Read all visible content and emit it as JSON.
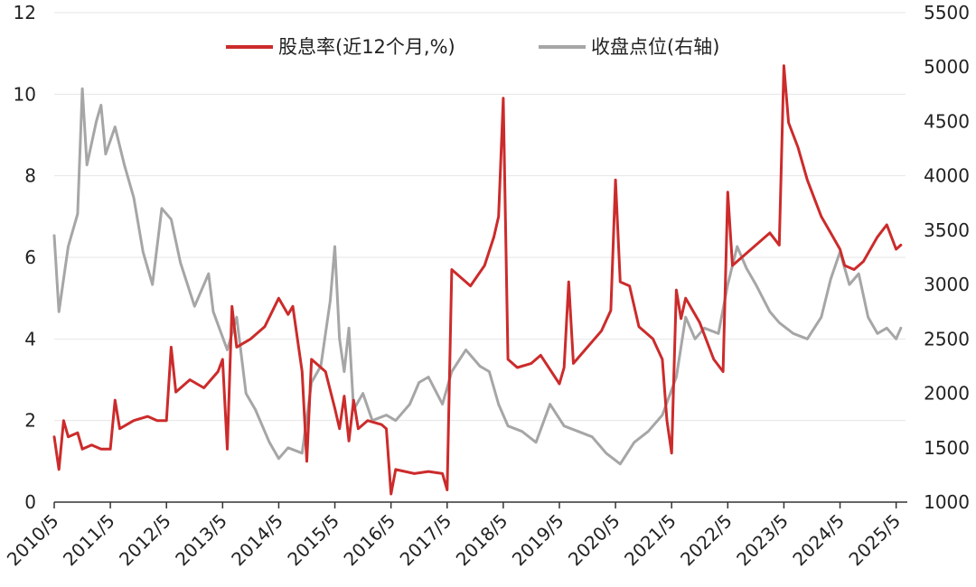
{
  "chart_data": {
    "type": "line",
    "title": "",
    "legend": {
      "placement": "top-center",
      "entries": [
        "股息率(近12个月,%)",
        "收盘点位(右轴)"
      ]
    },
    "colors": {
      "dividend": "#cc2b2b",
      "close": "#a6a6a6",
      "grid": "#e6e6e6",
      "axis": "#333333"
    },
    "x_axis": {
      "type": "date",
      "range": [
        "2010-05",
        "2025-07"
      ],
      "tick_labels": [
        "2010/5",
        "2011/5",
        "2012/5",
        "2013/5",
        "2014/5",
        "2015/5",
        "2016/5",
        "2017/5",
        "2018/5",
        "2019/5",
        "2020/5",
        "2021/5",
        "2022/5",
        "2023/5",
        "2024/5",
        "2025/5"
      ]
    },
    "y_axis_left": {
      "label": "",
      "ylim": [
        0,
        12
      ],
      "ticks": [
        0,
        2,
        4,
        6,
        8,
        10,
        12
      ]
    },
    "y_axis_right": {
      "label": "",
      "ylim": [
        1000,
        5500
      ],
      "ticks": [
        1000,
        1500,
        2000,
        2500,
        3000,
        3500,
        4000,
        4500,
        5000,
        5500
      ]
    },
    "grid": "horizontal",
    "series": [
      {
        "name": "股息率(近12个月,%)",
        "axis": "left",
        "points": [
          [
            "2010-05",
            1.6
          ],
          [
            "2010-06",
            0.8
          ],
          [
            "2010-07",
            2.0
          ],
          [
            "2010-08",
            1.6
          ],
          [
            "2010-10",
            1.7
          ],
          [
            "2010-11",
            1.3
          ],
          [
            "2011-01",
            1.4
          ],
          [
            "2011-03",
            1.3
          ],
          [
            "2011-05",
            1.3
          ],
          [
            "2011-06",
            2.5
          ],
          [
            "2011-07",
            1.8
          ],
          [
            "2011-10",
            2.0
          ],
          [
            "2012-01",
            2.1
          ],
          [
            "2012-03",
            2.0
          ],
          [
            "2012-05",
            2.0
          ],
          [
            "2012-06",
            3.8
          ],
          [
            "2012-07",
            2.7
          ],
          [
            "2012-10",
            3.0
          ],
          [
            "2013-01",
            2.8
          ],
          [
            "2013-04",
            3.2
          ],
          [
            "2013-05",
            3.5
          ],
          [
            "2013-06",
            1.3
          ],
          [
            "2013-07",
            4.8
          ],
          [
            "2013-08",
            3.8
          ],
          [
            "2013-11",
            4.0
          ],
          [
            "2014-02",
            4.3
          ],
          [
            "2014-05",
            5.0
          ],
          [
            "2014-07",
            4.6
          ],
          [
            "2014-08",
            4.8
          ],
          [
            "2014-10",
            3.2
          ],
          [
            "2014-11",
            1.0
          ],
          [
            "2014-12",
            3.5
          ],
          [
            "2015-03",
            3.2
          ],
          [
            "2015-05",
            2.3
          ],
          [
            "2015-06",
            1.8
          ],
          [
            "2015-07",
            2.6
          ],
          [
            "2015-08",
            1.5
          ],
          [
            "2015-09",
            2.5
          ],
          [
            "2015-10",
            1.8
          ],
          [
            "2015-12",
            2.0
          ],
          [
            "2016-03",
            1.9
          ],
          [
            "2016-04",
            1.8
          ],
          [
            "2016-05",
            0.2
          ],
          [
            "2016-06",
            0.8
          ],
          [
            "2016-10",
            0.7
          ],
          [
            "2017-01",
            0.75
          ],
          [
            "2017-04",
            0.7
          ],
          [
            "2017-05",
            0.3
          ],
          [
            "2017-06",
            5.7
          ],
          [
            "2017-08",
            5.5
          ],
          [
            "2017-10",
            5.3
          ],
          [
            "2018-01",
            5.8
          ],
          [
            "2018-03",
            6.5
          ],
          [
            "2018-04",
            7.0
          ],
          [
            "2018-05",
            9.9
          ],
          [
            "2018-06",
            3.5
          ],
          [
            "2018-08",
            3.3
          ],
          [
            "2018-11",
            3.4
          ],
          [
            "2019-01",
            3.6
          ],
          [
            "2019-05",
            2.9
          ],
          [
            "2019-06",
            3.3
          ],
          [
            "2019-07",
            5.4
          ],
          [
            "2019-08",
            3.4
          ],
          [
            "2019-11",
            3.8
          ],
          [
            "2020-02",
            4.2
          ],
          [
            "2020-04",
            4.7
          ],
          [
            "2020-05",
            7.9
          ],
          [
            "2020-06",
            5.4
          ],
          [
            "2020-08",
            5.3
          ],
          [
            "2020-10",
            4.3
          ],
          [
            "2021-01",
            4.0
          ],
          [
            "2021-03",
            3.5
          ],
          [
            "2021-04",
            2.0
          ],
          [
            "2021-05",
            1.2
          ],
          [
            "2021-06",
            5.2
          ],
          [
            "2021-07",
            4.5
          ],
          [
            "2021-08",
            5.0
          ],
          [
            "2021-11",
            4.4
          ],
          [
            "2022-02",
            3.5
          ],
          [
            "2022-04",
            3.2
          ],
          [
            "2022-05",
            7.6
          ],
          [
            "2022-06",
            5.8
          ],
          [
            "2022-08",
            6.0
          ],
          [
            "2022-11",
            6.3
          ],
          [
            "2023-02",
            6.6
          ],
          [
            "2023-04",
            6.3
          ],
          [
            "2023-05",
            10.7
          ],
          [
            "2023-06",
            9.3
          ],
          [
            "2023-08",
            8.7
          ],
          [
            "2023-10",
            7.9
          ],
          [
            "2024-01",
            7.0
          ],
          [
            "2024-03",
            6.6
          ],
          [
            "2024-05",
            6.2
          ],
          [
            "2024-06",
            5.8
          ],
          [
            "2024-08",
            5.7
          ],
          [
            "2024-10",
            5.9
          ],
          [
            "2025-01",
            6.5
          ],
          [
            "2025-03",
            6.8
          ],
          [
            "2025-05",
            6.2
          ],
          [
            "2025-06",
            6.3
          ]
        ]
      },
      {
        "name": "收盘点位(右轴)",
        "axis": "right",
        "points": [
          [
            "2010-05",
            3450
          ],
          [
            "2010-06",
            2750
          ],
          [
            "2010-08",
            3350
          ],
          [
            "2010-10",
            3650
          ],
          [
            "2010-11",
            4800
          ],
          [
            "2010-12",
            4100
          ],
          [
            "2011-02",
            4500
          ],
          [
            "2011-03",
            4650
          ],
          [
            "2011-04",
            4200
          ],
          [
            "2011-06",
            4450
          ],
          [
            "2011-08",
            4100
          ],
          [
            "2011-10",
            3800
          ],
          [
            "2011-12",
            3300
          ],
          [
            "2012-02",
            3000
          ],
          [
            "2012-04",
            3700
          ],
          [
            "2012-06",
            3600
          ],
          [
            "2012-08",
            3200
          ],
          [
            "2012-11",
            2800
          ],
          [
            "2013-02",
            3100
          ],
          [
            "2013-03",
            2750
          ],
          [
            "2013-06",
            2400
          ],
          [
            "2013-08",
            2700
          ],
          [
            "2013-10",
            2000
          ],
          [
            "2013-12",
            1850
          ],
          [
            "2014-03",
            1550
          ],
          [
            "2014-05",
            1400
          ],
          [
            "2014-07",
            1500
          ],
          [
            "2014-10",
            1450
          ],
          [
            "2014-12",
            2100
          ],
          [
            "2015-02",
            2250
          ],
          [
            "2015-04",
            2850
          ],
          [
            "2015-05",
            3350
          ],
          [
            "2015-06",
            2500
          ],
          [
            "2015-07",
            2200
          ],
          [
            "2015-08",
            2600
          ],
          [
            "2015-09",
            1850
          ],
          [
            "2015-11",
            2000
          ],
          [
            "2016-01",
            1750
          ],
          [
            "2016-04",
            1800
          ],
          [
            "2016-06",
            1750
          ],
          [
            "2016-09",
            1900
          ],
          [
            "2016-11",
            2100
          ],
          [
            "2017-01",
            2150
          ],
          [
            "2017-04",
            1900
          ],
          [
            "2017-06",
            2200
          ],
          [
            "2017-09",
            2400
          ],
          [
            "2017-12",
            2250
          ],
          [
            "2018-02",
            2200
          ],
          [
            "2018-04",
            1900
          ],
          [
            "2018-06",
            1700
          ],
          [
            "2018-09",
            1650
          ],
          [
            "2018-12",
            1550
          ],
          [
            "2019-03",
            1900
          ],
          [
            "2019-06",
            1700
          ],
          [
            "2019-09",
            1650
          ],
          [
            "2019-12",
            1600
          ],
          [
            "2020-03",
            1450
          ],
          [
            "2020-06",
            1350
          ],
          [
            "2020-09",
            1550
          ],
          [
            "2020-12",
            1650
          ],
          [
            "2021-03",
            1800
          ],
          [
            "2021-06",
            2150
          ],
          [
            "2021-08",
            2700
          ],
          [
            "2021-10",
            2500
          ],
          [
            "2021-12",
            2600
          ],
          [
            "2022-03",
            2550
          ],
          [
            "2022-05",
            3000
          ],
          [
            "2022-07",
            3350
          ],
          [
            "2022-09",
            3150
          ],
          [
            "2022-11",
            3000
          ],
          [
            "2023-02",
            2750
          ],
          [
            "2023-04",
            2650
          ],
          [
            "2023-07",
            2550
          ],
          [
            "2023-10",
            2500
          ],
          [
            "2024-01",
            2700
          ],
          [
            "2024-03",
            3050
          ],
          [
            "2024-05",
            3300
          ],
          [
            "2024-07",
            3000
          ],
          [
            "2024-09",
            3100
          ],
          [
            "2024-11",
            2700
          ],
          [
            "2025-01",
            2550
          ],
          [
            "2025-03",
            2600
          ],
          [
            "2025-05",
            2500
          ],
          [
            "2025-06",
            2600
          ]
        ]
      }
    ]
  }
}
